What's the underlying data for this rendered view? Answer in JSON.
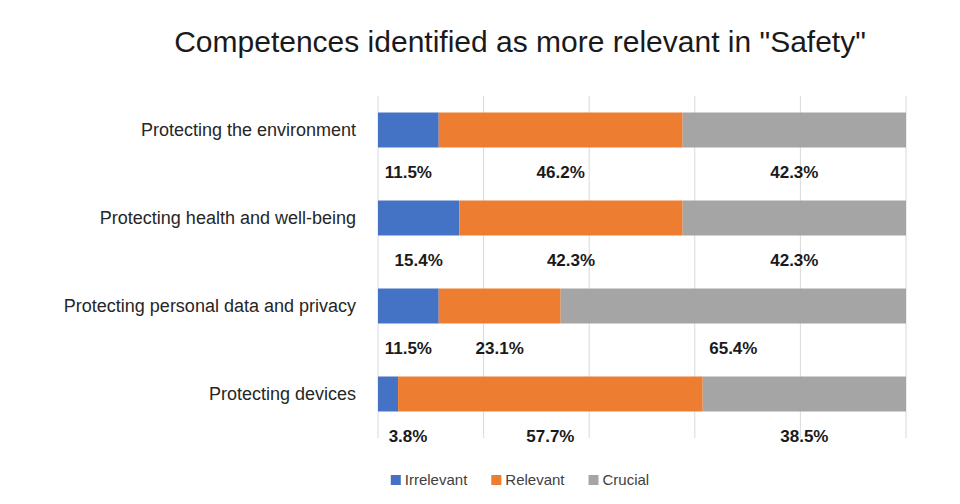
{
  "chart_data": {
    "type": "bar",
    "title": "Competences identified as more relevant in \"Safety\"",
    "orientation": "horizontal",
    "stacked": true,
    "categories": [
      "Protecting the environment",
      "Protecting health and well-being",
      "Protecting personal data and privacy",
      "Protecting devices"
    ],
    "series": [
      {
        "name": "Irrelevant",
        "color": "#4472c4",
        "values": [
          11.5,
          15.4,
          11.5,
          3.8
        ],
        "value_labels": [
          "11.5%",
          "15.4%",
          "11.5%",
          "3.8%"
        ]
      },
      {
        "name": "Relevant",
        "color": "#ed7d31",
        "values": [
          46.2,
          42.3,
          23.1,
          57.7
        ],
        "value_labels": [
          "46.2%",
          "42.3%",
          "23.1%",
          "57.7%"
        ]
      },
      {
        "name": "Crucial",
        "color": "#a5a5a5",
        "values": [
          42.3,
          42.3,
          65.4,
          38.5
        ],
        "value_labels": [
          "42.3%",
          "42.3%",
          "65.4%",
          "38.5%"
        ]
      }
    ],
    "xlim": [
      0,
      100
    ],
    "xticks": [
      0,
      20,
      40,
      60,
      80,
      100
    ],
    "grid": true,
    "data_labels": true,
    "tick_labels": "y",
    "legend": "bottom"
  }
}
